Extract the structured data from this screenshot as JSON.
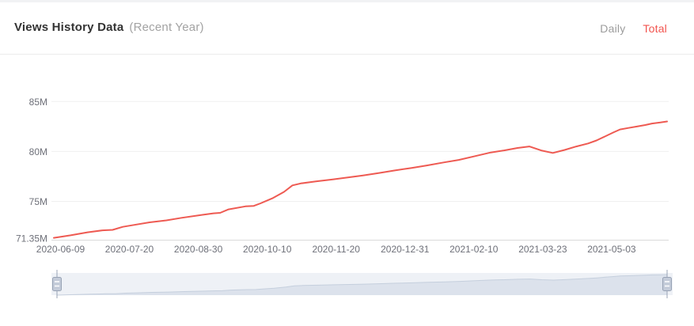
{
  "header": {
    "title": "Views History Data",
    "subtitle": "(Recent Year)",
    "tabs": [
      {
        "label": "Daily",
        "active": false
      },
      {
        "label": "Total",
        "active": true
      }
    ]
  },
  "colors": {
    "line": "#ee5a52",
    "tab_active": "#f2544f",
    "tab_inactive": "#9c9c9c",
    "axis_label": "#6e7079",
    "gridline": "#f0f0f0",
    "axis_line": "#dadada",
    "slider_track": "#eef1f6",
    "slider_fill": "#dce2ec",
    "slider_line": "#c5cfdd",
    "slider_handle_fill": "#c3cbd9",
    "slider_handle_border": "#98a3b5"
  },
  "chart_data": {
    "type": "line",
    "title": "Views History Data (Recent Year)",
    "xlabel": "",
    "ylabel": "",
    "value_unit": "M",
    "ylim": [
      71.35,
      85
    ],
    "grid": true,
    "x_ticks": [
      "2020-06-09",
      "2020-07-20",
      "2020-08-30",
      "2020-10-10",
      "2020-11-20",
      "2020-12-31",
      "2021-02-10",
      "2021-03-23",
      "2021-05-03"
    ],
    "y_ticks": [
      {
        "label": "85M",
        "value": 85
      },
      {
        "label": "80M",
        "value": 80
      },
      {
        "label": "75M",
        "value": 75
      },
      {
        "label": "71.35M",
        "value": 71.35
      }
    ],
    "series": [
      {
        "name": "Total",
        "dates": [
          "2020-06-05",
          "2020-06-15",
          "2020-06-25",
          "2020-07-04",
          "2020-07-10",
          "2020-07-16",
          "2020-07-23",
          "2020-08-01",
          "2020-08-11",
          "2020-08-20",
          "2020-08-30",
          "2020-09-08",
          "2020-09-12",
          "2020-09-17",
          "2020-09-27",
          "2020-10-02",
          "2020-10-06",
          "2020-10-13",
          "2020-10-20",
          "2020-10-25",
          "2020-10-30",
          "2020-11-08",
          "2020-11-18",
          "2020-11-27",
          "2020-12-06",
          "2020-12-16",
          "2020-12-25",
          "2021-01-04",
          "2021-01-13",
          "2021-01-23",
          "2021-02-01",
          "2021-02-10",
          "2021-02-20",
          "2021-02-28",
          "2021-03-08",
          "2021-03-15",
          "2021-03-22",
          "2021-03-29",
          "2021-04-05",
          "2021-04-12",
          "2021-04-19",
          "2021-04-24",
          "2021-04-29",
          "2021-05-04",
          "2021-05-08",
          "2021-05-13",
          "2021-05-18",
          "2021-05-23",
          "2021-05-27",
          "2021-06-01",
          "2021-06-05"
        ],
        "values_millions": [
          71.35,
          71.6,
          71.9,
          72.1,
          72.15,
          72.45,
          72.65,
          72.9,
          73.1,
          73.35,
          73.6,
          73.8,
          73.85,
          74.2,
          74.5,
          74.55,
          74.8,
          75.3,
          75.95,
          76.6,
          76.8,
          77.0,
          77.2,
          77.4,
          77.6,
          77.85,
          78.1,
          78.35,
          78.6,
          78.9,
          79.15,
          79.5,
          79.9,
          80.1,
          80.35,
          80.5,
          80.1,
          79.85,
          80.15,
          80.5,
          80.8,
          81.1,
          81.5,
          81.9,
          82.2,
          82.35,
          82.5,
          82.65,
          82.8,
          82.9,
          83.0
        ]
      }
    ]
  }
}
